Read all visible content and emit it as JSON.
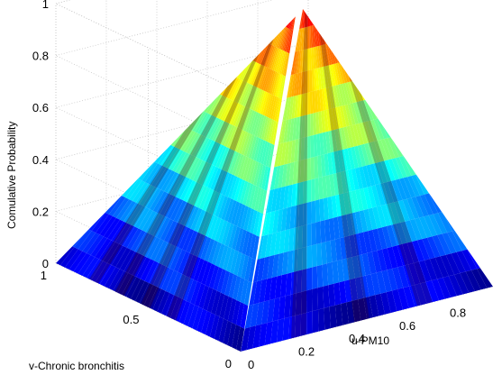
{
  "chart_data": {
    "type": "surface",
    "title": "",
    "xlabel": "u-PM10",
    "ylabel": "v-Chronic bronchitis",
    "zlabel": "Comulative Probability",
    "xlim": [
      0,
      1
    ],
    "ylim": [
      0,
      1
    ],
    "zlim": [
      0,
      1
    ],
    "x_ticks": [
      "0",
      "0.2",
      "0.4",
      "0.6",
      "0.8"
    ],
    "y_ticks": [
      "0",
      "0.5",
      "1"
    ],
    "z_ticks": [
      "0",
      "0.2",
      "0.4",
      "0.6",
      "0.8",
      "1"
    ],
    "grid": true,
    "colormap": "jet",
    "surface": {
      "description_points": [
        {
          "u": 0,
          "v": 0,
          "C": 0
        },
        {
          "u": 1,
          "v": 0,
          "C": 0
        },
        {
          "u": 0,
          "v": 1,
          "C": 0
        },
        {
          "u": 1,
          "v": 1,
          "C": 1
        }
      ]
    },
    "colors": {
      "low": "#00008f",
      "mid": "#7fff7f",
      "high": "#800000"
    }
  }
}
